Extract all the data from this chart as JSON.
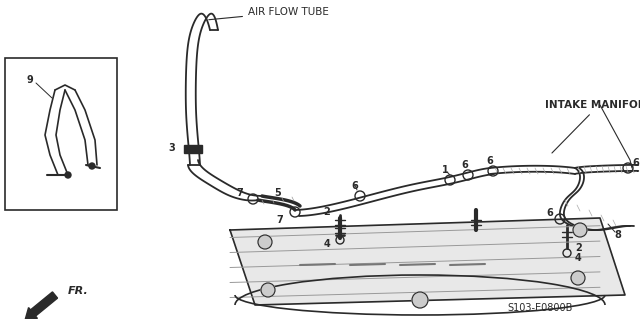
{
  "bg_color": "#ffffff",
  "line_color": "#2a2a2a",
  "labels": {
    "air_flow_tube": "AIR FLOW TUBE",
    "intake_manifold": "INTAKE MANIFOLD",
    "part_code": "S103-E0800B",
    "fr_label": "FR."
  },
  "figsize": [
    6.4,
    3.19
  ],
  "dpi": 100
}
